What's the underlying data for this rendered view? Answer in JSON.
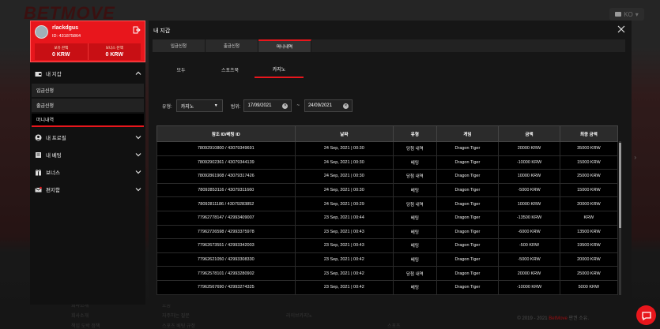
{
  "background": {
    "logo": "BETMOVE",
    "lang": "KO",
    "footer_cols": [
      [
        "회사소개",
        "회사소개",
        "책임 도박 정책"
      ],
      [
        "도움",
        "자주하는 질문",
        "스포츠 베팅 규정"
      ],
      [
        "",
        "",
        "라이브카지노"
      ],
      [
        "",
        "",
        "스포츠"
      ]
    ],
    "copyright_year": "© 2019 - 2021",
    "copyright_brand": "BetMove",
    "copyright_suffix": "판권 소유."
  },
  "sidebar": {
    "username": "rlackdgus",
    "user_id": "ID: 431875864",
    "balance_label": "보유 잔액",
    "balance_value": "0 KRW",
    "bonus_label": "보너스 잔액",
    "bonus_value": "0 KRW",
    "wallet_label": "내 지갑",
    "sub_items": [
      "입금신청",
      "출금신청",
      "머니내역"
    ],
    "items": [
      {
        "label": "내 프로필"
      },
      {
        "label": "내 베팅"
      },
      {
        "label": "보너스"
      },
      {
        "label": "편지함"
      }
    ]
  },
  "modal": {
    "title": "내 지갑",
    "tabs": [
      "입금신청",
      "출금신청",
      "머니내역"
    ],
    "subtabs": [
      "모두",
      "스포츠북",
      "카지노"
    ],
    "filter": {
      "type_label": "유형:",
      "type_value": "카지노",
      "range_label": "범위:",
      "date_from": "17/09/2021",
      "date_to": "24/09/2021",
      "separator": "~"
    },
    "table": {
      "headers": [
        "참조 ID/베팅 ID",
        "날짜",
        "유형",
        "게임",
        "금액",
        "최종 금액"
      ],
      "rows": [
        [
          "78092910800 / 43079349691",
          "24 Sep, 2021 | 00:30",
          "당첨 내역",
          "Dragon Tiger",
          "20000 KRW",
          "35000 KRW"
        ],
        [
          "78092902361 / 43079344139",
          "24 Sep, 2021 | 00:30",
          "베팅",
          "Dragon Tiger",
          "-10000 KRW",
          "15000 KRW"
        ],
        [
          "78092861908 / 43079317426",
          "24 Sep, 2021 | 00:30",
          "당첨 내역",
          "Dragon Tiger",
          "10000 KRW",
          "25000 KRW"
        ],
        [
          "78092853116 / 43079311660",
          "24 Sep, 2021 | 00:30",
          "베팅",
          "Dragon Tiger",
          "-5000 KRW",
          "15000 KRW"
        ],
        [
          "78092811186 / 43079283852",
          "24 Sep, 2021 | 00:29",
          "당첨 내역",
          "Dragon Tiger",
          "10000 KRW",
          "20000 KRW"
        ],
        [
          "77962778147 / 42993409007",
          "23 Sep, 2021 | 00:44",
          "베팅",
          "Dragon Tiger",
          "-13500 KRW",
          "KRW"
        ],
        [
          "77962726598 / 42993375978",
          "23 Sep, 2021 | 00:43",
          "베팅",
          "Dragon Tiger",
          "-6000 KRW",
          "13500 KRW"
        ],
        [
          "77962673551 / 42993342003",
          "23 Sep, 2021 | 00:43",
          "베팅",
          "Dragon Tiger",
          "-500 KRW",
          "19500 KRW"
        ],
        [
          "77962621050 / 42993308330",
          "23 Sep, 2021 | 00:42",
          "베팅",
          "Dragon Tiger",
          "-5000 KRW",
          "20000 KRW"
        ],
        [
          "77962578101 / 42993280902",
          "23 Sep, 2021 | 00:42",
          "당첨 내역",
          "Dragon Tiger",
          "20000 KRW",
          "25000 KRW"
        ],
        [
          "77962567690 / 42993274325",
          "23 Sep, 2021 | 00:42",
          "베팅",
          "Dragon Tiger",
          "-10000 KRW",
          "5000 KRW"
        ]
      ]
    }
  }
}
